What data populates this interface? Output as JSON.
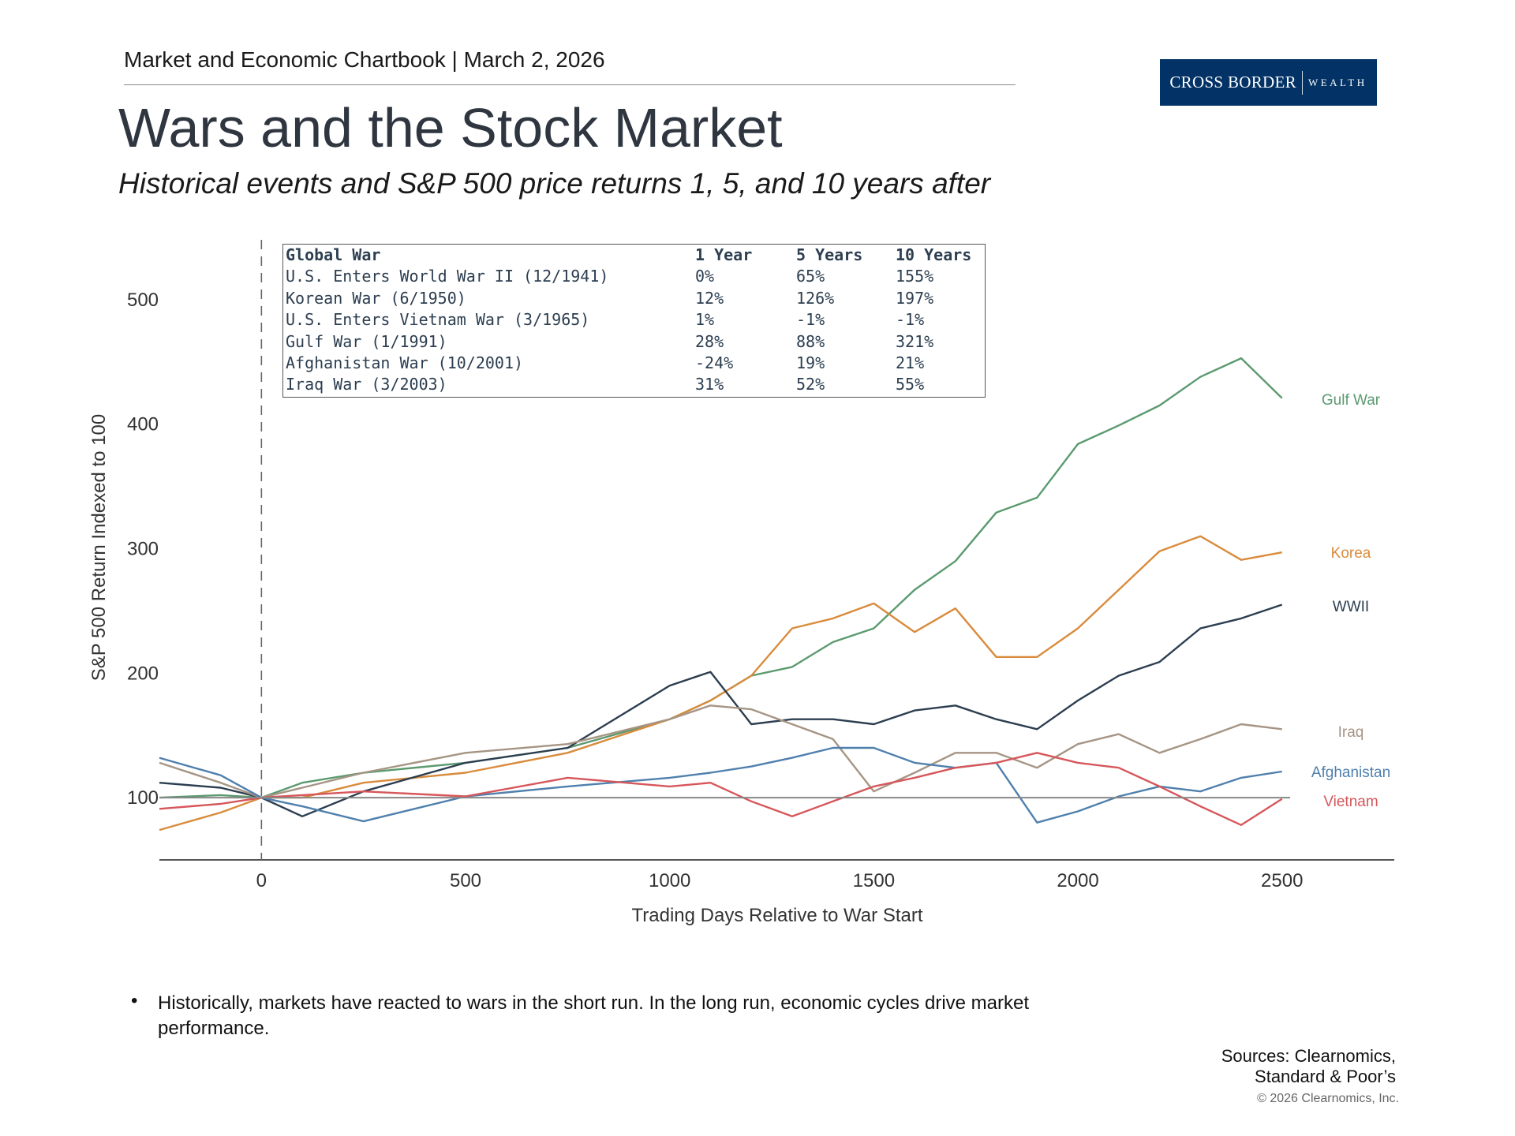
{
  "header": {
    "chartbook": "Market and Economic Chartbook | March 2, 2026",
    "title": "Wars and the Stock Market",
    "subtitle": "Historical events and S&P 500 price returns 1, 5, and 10 years after"
  },
  "logo": {
    "primary": "CROSS BORDER",
    "secondary": "WEALTH",
    "color": "#033366"
  },
  "table": {
    "headers": [
      "Global War",
      "1 Year",
      "5 Years",
      "10 Years"
    ],
    "rows": [
      [
        "U.S. Enters World War II (12/1941)",
        "0%",
        "65%",
        "155%"
      ],
      [
        "Korean War (6/1950)",
        "12%",
        "126%",
        "197%"
      ],
      [
        "U.S. Enters Vietnam War (3/1965)",
        "1%",
        "-1%",
        "-1%"
      ],
      [
        "Gulf War (1/1991)",
        "28%",
        "88%",
        "321%"
      ],
      [
        "Afghanistan War (10/2001)",
        "-24%",
        "19%",
        "21%"
      ],
      [
        "Iraq War (3/2003)",
        "31%",
        "52%",
        "55%"
      ]
    ]
  },
  "chart_data": {
    "type": "line",
    "xlabel": "Trading Days Relative to War Start",
    "ylabel": "S&P 500 Return Indexed to 100",
    "xlim": [
      -250,
      2775
    ],
    "ylim": [
      50,
      550
    ],
    "xticks": [
      "0",
      "500",
      "1000",
      "1500",
      "2000",
      "2500"
    ],
    "yticks": [
      "100",
      "200",
      "300",
      "400",
      "500"
    ],
    "reference_line_y": 100,
    "event_line_x": 0,
    "grid": false,
    "legend": "labels at line ends (right)",
    "x": [
      -250,
      -100,
      0,
      100,
      250,
      500,
      750,
      1000,
      1100,
      1200,
      1300,
      1400,
      1500,
      1600,
      1700,
      1800,
      1900,
      2000,
      2100,
      2200,
      2300,
      2400,
      2500
    ],
    "series": [
      {
        "name": "Gulf War",
        "color": "#5b9a6f",
        "values": [
          100,
          102,
          100,
          112,
          120,
          128,
          140,
          163,
          178,
          198,
          205,
          225,
          236,
          267,
          290,
          329,
          341,
          384,
          399,
          415,
          438,
          453,
          421
        ]
      },
      {
        "name": "Korea",
        "color": "#d98b3c",
        "values": [
          74,
          88,
          100,
          100,
          112,
          120,
          136,
          163,
          178,
          198,
          236,
          244,
          256,
          233,
          252,
          213,
          213,
          236,
          267,
          298,
          310,
          291,
          297
        ]
      },
      {
        "name": "WWII",
        "color": "#2c3e50",
        "values": [
          112,
          108,
          100,
          85,
          105,
          128,
          140,
          190,
          201,
          159,
          163,
          163,
          159,
          170,
          174,
          163,
          155,
          178,
          198,
          209,
          236,
          244,
          255
        ]
      },
      {
        "name": "Iraq",
        "color": "#a69585",
        "values": [
          128,
          112,
          100,
          108,
          120,
          136,
          143,
          163,
          174,
          171,
          159,
          147,
          105,
          120,
          136,
          136,
          124,
          143,
          151,
          136,
          147,
          159,
          155
        ]
      },
      {
        "name": "Afghanistan",
        "color": "#4f80ad",
        "values": [
          132,
          118,
          100,
          93,
          81,
          101,
          109,
          116,
          120,
          125,
          132,
          140,
          140,
          128,
          124,
          128,
          80,
          89,
          101,
          109,
          105,
          116,
          121
        ]
      },
      {
        "name": "Vietnam",
        "color": "#d6575b",
        "values": [
          91,
          95,
          100,
          102,
          105,
          101,
          116,
          109,
          112,
          97,
          85,
          97,
          109,
          116,
          124,
          128,
          136,
          128,
          124,
          109,
          93,
          78,
          99
        ]
      }
    ]
  },
  "notes": {
    "bullet": "Historically, markets have reacted to wars in the short run. In the long run, economic cycles drive market performance.",
    "sources_line1": "Sources: Clearnomics,",
    "sources_line2": "Standard & Poor’s",
    "copyright": "© 2026 Clearnomics, Inc."
  }
}
